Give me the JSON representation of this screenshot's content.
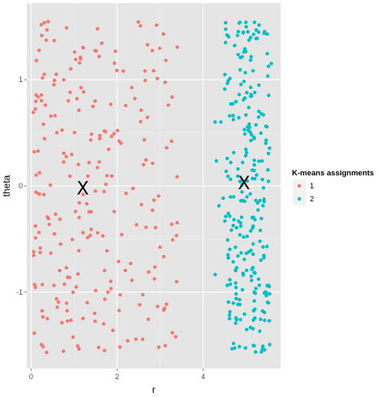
{
  "chart_data": {
    "type": "scatter",
    "xlabel": "r",
    "ylabel": "theta",
    "xlim": [
      -0.1,
      5.8
    ],
    "ylim": [
      -1.72,
      1.72
    ],
    "x_ticks": [
      0,
      2,
      4
    ],
    "x_tick_labels": [
      "0",
      "2",
      "4"
    ],
    "y_ticks": [
      -1,
      0,
      1
    ],
    "y_tick_labels": [
      "-1",
      "0",
      "1"
    ],
    "grid": true,
    "legend_position": "right",
    "legend": {
      "title": "K-means assignments",
      "entries": [
        {
          "label": "1",
          "color": "#F8766D"
        },
        {
          "label": "2",
          "color": "#00BFC4"
        }
      ]
    },
    "centroid_marker": "X",
    "centroids": [
      {
        "cluster": "1",
        "x": 1.2,
        "y": -0.02
      },
      {
        "cluster": "2",
        "x": 4.95,
        "y": 0.03
      }
    ],
    "series": [
      {
        "name": "1",
        "color": "#F8766D",
        "n": 240,
        "x_range": [
          0.05,
          3.4
        ],
        "y_range": [
          -1.57,
          1.57
        ]
      },
      {
        "name": "2",
        "color": "#00BFC4",
        "n": 260,
        "x_range": [
          3.9,
          5.6
        ],
        "y_range": [
          -1.57,
          1.57
        ]
      }
    ],
    "colors": {
      "panel_background": "#E5E5E5",
      "major_grid": "#FFFFFF",
      "minor_grid": "#F2F2F2",
      "legend_key_background": "#F2F2F2"
    }
  }
}
